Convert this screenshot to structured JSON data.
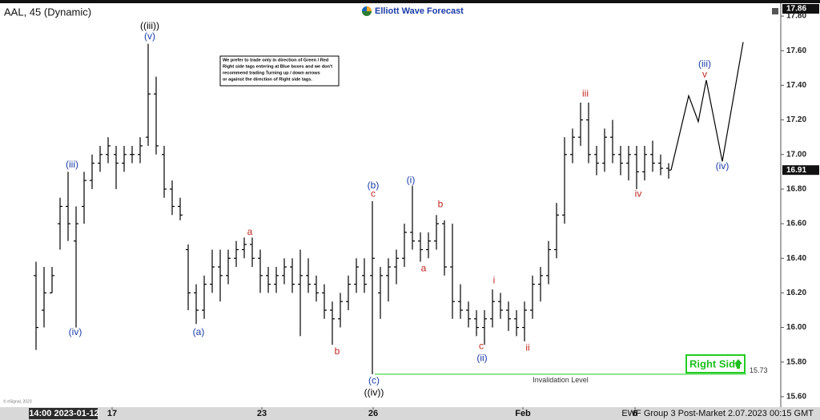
{
  "chart_data": {
    "type": "ohlc",
    "title": "AAL, 45 (Dynamic)",
    "brand": "Elliott Wave Forecast",
    "footer": "EWF Group 3 Post-Market 2.07.2023 00:15 GMT",
    "copyright": "© eSignal, 2023",
    "note": [
      "We prefer to trade only in direction of Green / Red",
      "Right side tags entering at Blue boxes and we don't",
      "recommend trading Turning up / down arrows",
      "or against the direction of Right side tags."
    ],
    "color": "#000000",
    "open": [
      16.3,
      16.1,
      16.2,
      16.6,
      16.7,
      16.5,
      16.7,
      16.85,
      16.95,
      17.0,
      17.0,
      16.95,
      17.0,
      17.0,
      17.1,
      17.35,
      17.0,
      16.8,
      16.7,
      16.45,
      16.2,
      16.1,
      16.25,
      16.35,
      16.3,
      16.4,
      16.45,
      16.48,
      16.4,
      16.3,
      16.25,
      16.3,
      16.35,
      16.25,
      16.3,
      16.25,
      16.2,
      16.1,
      16.05,
      16.15,
      16.25,
      16.3,
      16.3,
      16.2,
      16.3,
      16.35,
      16.4,
      16.55,
      16.5,
      16.45,
      16.5,
      16.6,
      16.35,
      16.15,
      16.1,
      16.05,
      16.0,
      16.05,
      16.15,
      16.1,
      16.05,
      16.0,
      16.1,
      16.25,
      16.3,
      16.45,
      16.65,
      17.0,
      17.1,
      17.2,
      17.0,
      16.95,
      17.1,
      17.0,
      16.95,
      17.0,
      16.9,
      17.0,
      16.95,
      16.92
    ],
    "high": [
      16.38,
      16.35,
      16.35,
      16.75,
      16.9,
      16.7,
      16.9,
      17.0,
      17.05,
      17.1,
      17.05,
      17.05,
      17.05,
      17.1,
      17.64,
      17.45,
      17.05,
      16.85,
      16.75,
      16.48,
      16.25,
      16.3,
      16.45,
      16.45,
      16.45,
      16.5,
      16.52,
      16.52,
      16.45,
      16.35,
      16.35,
      16.4,
      16.4,
      16.45,
      16.4,
      16.3,
      16.25,
      16.15,
      16.2,
      16.3,
      16.4,
      16.4,
      16.73,
      16.35,
      16.4,
      16.45,
      16.6,
      16.82,
      16.55,
      16.55,
      16.65,
      16.62,
      16.6,
      16.25,
      16.15,
      16.1,
      16.1,
      16.22,
      16.2,
      16.15,
      16.1,
      16.15,
      16.3,
      16.35,
      16.5,
      16.72,
      17.1,
      17.15,
      17.3,
      17.3,
      17.05,
      17.15,
      17.2,
      17.05,
      17.05,
      17.05,
      17.05,
      17.08,
      17.0,
      16.95
    ],
    "low": [
      15.87,
      16.0,
      16.2,
      16.45,
      16.5,
      16.0,
      16.6,
      16.8,
      16.9,
      16.95,
      16.8,
      16.9,
      16.95,
      16.95,
      17.05,
      17.0,
      16.75,
      16.65,
      16.62,
      16.1,
      16.02,
      16.05,
      16.2,
      16.15,
      16.25,
      16.35,
      16.4,
      16.35,
      16.2,
      16.2,
      16.2,
      16.25,
      16.2,
      15.95,
      16.2,
      16.15,
      16.05,
      15.9,
      16.0,
      16.1,
      16.2,
      16.2,
      15.73,
      16.05,
      16.15,
      16.25,
      16.35,
      16.45,
      16.38,
      16.4,
      16.45,
      16.3,
      16.05,
      16.05,
      16.0,
      15.95,
      15.9,
      16.0,
      16.05,
      15.98,
      15.95,
      15.92,
      16.05,
      16.15,
      16.25,
      16.4,
      16.6,
      16.95,
      17.05,
      16.95,
      16.88,
      16.9,
      16.95,
      16.88,
      16.85,
      16.8,
      16.85,
      16.9,
      16.88,
      16.86
    ],
    "close": [
      16.0,
      16.2,
      16.3,
      16.7,
      16.6,
      16.6,
      16.85,
      16.95,
      17.0,
      17.05,
      16.95,
      17.0,
      17.0,
      17.05,
      17.35,
      17.05,
      16.8,
      16.7,
      16.65,
      16.2,
      16.1,
      16.25,
      16.35,
      16.3,
      16.4,
      16.45,
      16.48,
      16.4,
      16.3,
      16.25,
      16.3,
      16.35,
      16.25,
      16.3,
      16.25,
      16.2,
      16.1,
      16.05,
      16.15,
      16.25,
      16.35,
      16.25,
      16.4,
      16.3,
      16.35,
      16.4,
      16.55,
      16.5,
      16.45,
      16.5,
      16.6,
      16.35,
      16.15,
      16.1,
      16.05,
      16.0,
      16.05,
      16.15,
      16.1,
      16.05,
      16.0,
      16.1,
      16.25,
      16.3,
      16.45,
      16.65,
      17.0,
      17.1,
      17.2,
      17.0,
      16.95,
      17.1,
      17.0,
      16.95,
      17.0,
      16.9,
      17.0,
      16.95,
      16.92,
      16.91
    ],
    "xlim": [
      -4.5,
      93
    ],
    "xticks": [
      {
        "value": 3.5,
        "label": "14:00 2023-01-12"
      },
      {
        "value": 9.5,
        "label": "17"
      },
      {
        "value": 28.2,
        "label": "23"
      },
      {
        "value": 42.1,
        "label": "26"
      },
      {
        "value": 60.8,
        "label": "Feb"
      },
      {
        "value": 74.8,
        "label": "6"
      }
    ],
    "ylim": [
      15.53,
      17.87
    ],
    "yticks": [
      {
        "value": 15.6,
        "label": "15.60"
      },
      {
        "value": 15.8,
        "label": "15.80"
      },
      {
        "value": 16.0,
        "label": "16.00"
      },
      {
        "value": 16.2,
        "label": "16.20"
      },
      {
        "value": 16.4,
        "label": "16.40"
      },
      {
        "value": 16.6,
        "label": "16.60"
      },
      {
        "value": 16.8,
        "label": "16.80"
      },
      {
        "value": 17.0,
        "label": "17.00"
      },
      {
        "value": 17.2,
        "label": "17.20"
      },
      {
        "value": 17.4,
        "label": "17.40"
      },
      {
        "value": 17.6,
        "label": "17.60"
      },
      {
        "value": 17.8,
        "label": "17.80"
      }
    ],
    "price_labels": [
      17.86,
      16.91
    ],
    "projection": {
      "x": [
        79.3,
        81.5,
        82.7,
        83.7,
        85.7,
        88.3
      ],
      "values": [
        16.91,
        17.34,
        17.19,
        17.43,
        16.96,
        17.65
      ],
      "color": "#000000"
    },
    "waves": [
      {
        "text": "((iii))",
        "x": 14.2,
        "y": 17.74,
        "color": "#000000"
      },
      {
        "text": "(v)",
        "x": 14.2,
        "y": 17.68,
        "color": "#1a3ca8"
      },
      {
        "text": "(iii)",
        "x": 4.5,
        "y": 16.94,
        "color": "#1a3ca8"
      },
      {
        "text": "(iv)",
        "x": 4.9,
        "y": 15.97,
        "color": "#1a3ca8"
      },
      {
        "text": "a",
        "x": 26.7,
        "y": 16.55,
        "color": "#c0281e"
      },
      {
        "text": "(a)",
        "x": 20.3,
        "y": 15.97,
        "color": "#1a3ca8"
      },
      {
        "text": "b",
        "x": 37.6,
        "y": 15.86,
        "color": "#c0281e"
      },
      {
        "text": "(b)",
        "x": 42.1,
        "y": 16.82,
        "color": "#1a3ca8"
      },
      {
        "text": "c",
        "x": 42.1,
        "y": 16.77,
        "color": "#c0281e"
      },
      {
        "text": "(c)",
        "x": 42.2,
        "y": 15.69,
        "color": "#1a3ca8"
      },
      {
        "text": "((iv))",
        "x": 42.2,
        "y": 15.62,
        "color": "#000000"
      },
      {
        "text": "(i)",
        "x": 46.8,
        "y": 16.85,
        "color": "#1a3ca8"
      },
      {
        "text": "b",
        "x": 50.5,
        "y": 16.71,
        "color": "#c0281e"
      },
      {
        "text": "a",
        "x": 48.4,
        "y": 16.34,
        "color": "#c0281e"
      },
      {
        "text": "i",
        "x": 57.2,
        "y": 16.27,
        "color": "#c0281e"
      },
      {
        "text": "c",
        "x": 55.6,
        "y": 15.89,
        "color": "#c0281e"
      },
      {
        "text": "(ii)",
        "x": 55.7,
        "y": 15.82,
        "color": "#1a3ca8"
      },
      {
        "text": "ii",
        "x": 61.4,
        "y": 15.88,
        "color": "#c0281e"
      },
      {
        "text": "iii",
        "x": 68.6,
        "y": 17.35,
        "color": "#c0281e"
      },
      {
        "text": "iv",
        "x": 75.2,
        "y": 16.77,
        "color": "#c0281e"
      },
      {
        "text": "(iii)",
        "x": 83.5,
        "y": 17.52,
        "color": "#1a3ca8"
      },
      {
        "text": "v",
        "x": 83.5,
        "y": 17.46,
        "color": "#c0281e"
      },
      {
        "text": "(iv)",
        "x": 85.7,
        "y": 16.93,
        "color": "#1a3ca8"
      }
    ],
    "invalidation": {
      "value": 15.73,
      "from_x": 42.3,
      "to_x": 88.7,
      "label": "Invalidation Level",
      "color": "#22cc22"
    },
    "right_side": "Right Side"
  }
}
